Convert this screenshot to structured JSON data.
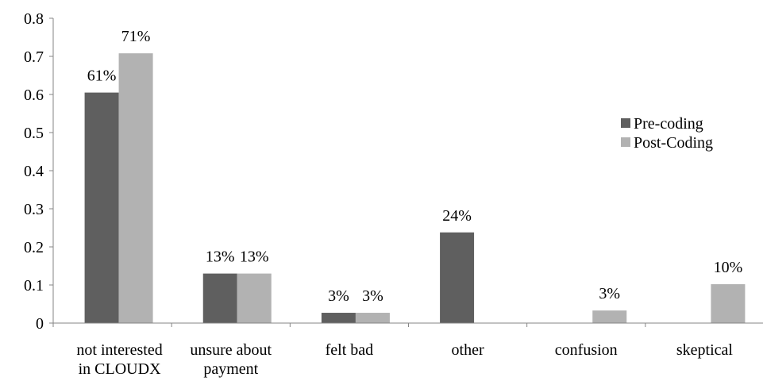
{
  "chart_data": {
    "type": "bar",
    "title": "",
    "xlabel": "",
    "ylabel": "",
    "ylim": [
      0,
      0.8
    ],
    "yticks": [
      "0",
      "0.1",
      "0.2",
      "0.3",
      "0.4",
      "0.5",
      "0.6",
      "0.7",
      "0.8"
    ],
    "grid": false,
    "legend_position": "right",
    "categories": [
      [
        "not interested",
        "in CLOUDX"
      ],
      [
        "unsure about",
        "payment"
      ],
      [
        "felt bad"
      ],
      [
        "other"
      ],
      [
        "confusion"
      ],
      [
        "skeptical"
      ]
    ],
    "series": [
      {
        "name": "Pre-coding",
        "color": "#5f5f5f",
        "values": [
          0.605,
          0.13,
          0.027,
          0.238,
          0,
          0
        ],
        "labels": [
          "61%",
          "13%",
          "3%",
          "24%",
          "",
          ""
        ]
      },
      {
        "name": "Post-Coding",
        "color": "#b2b2b2",
        "values": [
          0.708,
          0.13,
          0.027,
          0,
          0.033,
          0.102
        ],
        "labels": [
          "71%",
          "13%",
          "3%",
          "",
          "3%",
          "10%"
        ]
      }
    ]
  }
}
